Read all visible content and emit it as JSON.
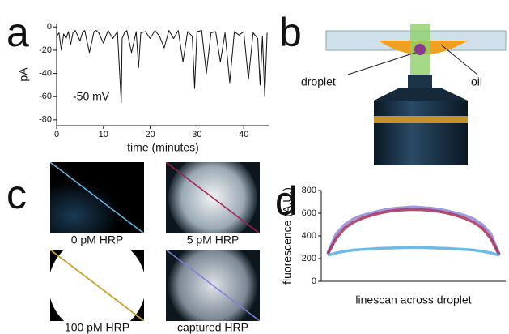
{
  "panel_labels": [
    "a",
    "b",
    "c",
    "d"
  ],
  "diagram": {
    "droplet_label": "droplet",
    "oil_label": "oil"
  },
  "images": [
    {
      "caption": "0 pM HRP"
    },
    {
      "caption": "5 pM HRP"
    },
    {
      "caption": "100 pM HRP"
    },
    {
      "caption": "captured HRP"
    }
  ],
  "chart_data": [
    {
      "type": "line",
      "x_label": "time (minutes)",
      "y_label": "pA",
      "annotation": "-50 mV",
      "xlim": [
        0,
        45.5
      ],
      "ylim": [
        -85,
        3
      ],
      "xticks": [
        0,
        10,
        20,
        30,
        40
      ],
      "yticks": [
        0,
        -20,
        -40,
        -60,
        -80
      ],
      "x": [
        0,
        0.5,
        1,
        1.5,
        2,
        2.5,
        3,
        3.5,
        4,
        5,
        5.5,
        6,
        7,
        8,
        8.5,
        9,
        10,
        11,
        12,
        13,
        13.8,
        14,
        14.5,
        15,
        16,
        17,
        17.5,
        18,
        19,
        20,
        21,
        22,
        23,
        24,
        25,
        26,
        27,
        28,
        29,
        29.5,
        30,
        31,
        32,
        33,
        34,
        35,
        36,
        37,
        38,
        39,
        40,
        41,
        42,
        43,
        43.5,
        44,
        44.5,
        45
      ],
      "series": [
        {
          "color": "#111111",
          "values": [
            -8,
            -5,
            -20,
            -6,
            -10,
            -4,
            -15,
            -5,
            -3,
            -12,
            -5,
            -3,
            -22,
            -4,
            -3,
            -5,
            -14,
            -3,
            -10,
            -4,
            -65,
            -10,
            -5,
            -3,
            -22,
            -4,
            -35,
            -5,
            -4,
            -10,
            -3,
            -8,
            -18,
            -3,
            -10,
            -3,
            -30,
            -4,
            -8,
            -53,
            -4,
            -3,
            -40,
            -5,
            -4,
            -30,
            -5,
            -48,
            -4,
            -7,
            -4,
            -45,
            -5,
            -10,
            -50,
            -8,
            -60,
            -5
          ]
        }
      ]
    },
    {
      "type": "line",
      "x_label": "linescan across droplet",
      "y_label": "fluorescence (A.U.)",
      "categories": [
        null,
        null,
        null,
        null,
        null,
        null,
        null,
        null,
        null,
        null,
        null,
        null,
        null,
        null,
        null,
        null,
        null,
        null,
        null,
        null,
        null
      ],
      "ylim": [
        0,
        800
      ],
      "yticks": [
        0,
        200,
        400,
        600,
        800
      ],
      "series": [
        {
          "color": "#8a80d2",
          "values": [
            250,
            420,
            500,
            550,
            580,
            600,
            620,
            635,
            645,
            650,
            655,
            650,
            645,
            635,
            620,
            600,
            580,
            550,
            500,
            420,
            240
          ]
        },
        {
          "color": "#a0214a",
          "values": [
            240,
            380,
            470,
            520,
            555,
            580,
            600,
            615,
            625,
            630,
            632,
            630,
            625,
            615,
            600,
            580,
            555,
            520,
            470,
            380,
            230
          ]
        },
        {
          "color": "#4aa8e0",
          "values": [
            230,
            250,
            265,
            275,
            280,
            285,
            290,
            292,
            295,
            297,
            298,
            297,
            295,
            292,
            290,
            285,
            280,
            275,
            265,
            250,
            230
          ]
        }
      ]
    }
  ]
}
